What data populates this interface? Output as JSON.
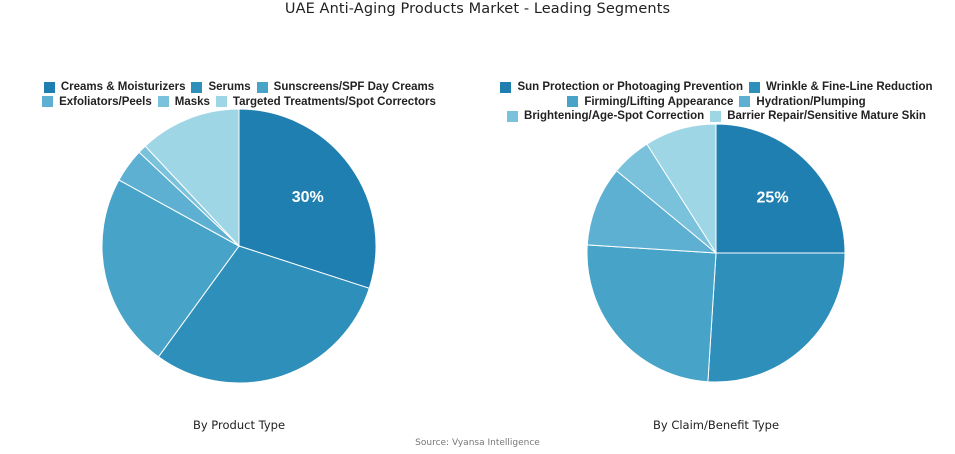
{
  "title": "UAE Anti-Aging Products Market - Leading Segments",
  "source": "Source: Vyansa Intelligence",
  "colors": [
    "#1f7fb0",
    "#2e8fbb",
    "#48a3c8",
    "#5eb0d2",
    "#7ac2dc",
    "#9fd6e6"
  ],
  "chart_data": [
    {
      "type": "pie",
      "title": "By Product Type",
      "categories": [
        "Creams & Moisturizers",
        "Serums",
        "Sunscreens/SPF Day Creams",
        "Exfoliators/Peels",
        "Masks",
        "Targeted Treatments/Spot Correctors"
      ],
      "values": [
        30,
        30,
        23,
        4,
        1,
        12
      ],
      "labels_shown": [
        "30%",
        "",
        "",
        "",
        "",
        ""
      ],
      "legend_position": "top",
      "start_angle": "12 o'clock, clockwise"
    },
    {
      "type": "pie",
      "title": "By Claim/Benefit Type",
      "categories": [
        "Sun Protection or Photoaging Prevention",
        "Wrinkle & Fine-Line Reduction",
        "Firming/Lifting Appearance",
        "Hydration/Plumping",
        "Brightening/Age-Spot Correction",
        "Barrier Repair/Sensitive Mature Skin"
      ],
      "values": [
        25,
        26,
        25,
        10,
        5,
        9
      ],
      "labels_shown": [
        "25%",
        "",
        "",
        "",
        "",
        ""
      ],
      "legend_position": "top",
      "start_angle": "12 o'clock, clockwise"
    }
  ],
  "left_legend_rows": [
    [
      "Creams & Moisturizers",
      "Serums",
      "Sunscreens/SPF Day Creams"
    ],
    [
      "Exfoliators/Peels",
      "Masks",
      "Targeted Treatments/Spot Correctors"
    ]
  ],
  "right_legend_rows": [
    [
      "Sun Protection or Photoaging Prevention",
      "Wrinkle & Fine-Line Reduction"
    ],
    [
      "Firming/Lifting Appearance",
      "Hydration/Plumping"
    ],
    [
      "Brightening/Age-Spot Correction",
      "Barrier Repair/Sensitive Mature Skin"
    ]
  ]
}
